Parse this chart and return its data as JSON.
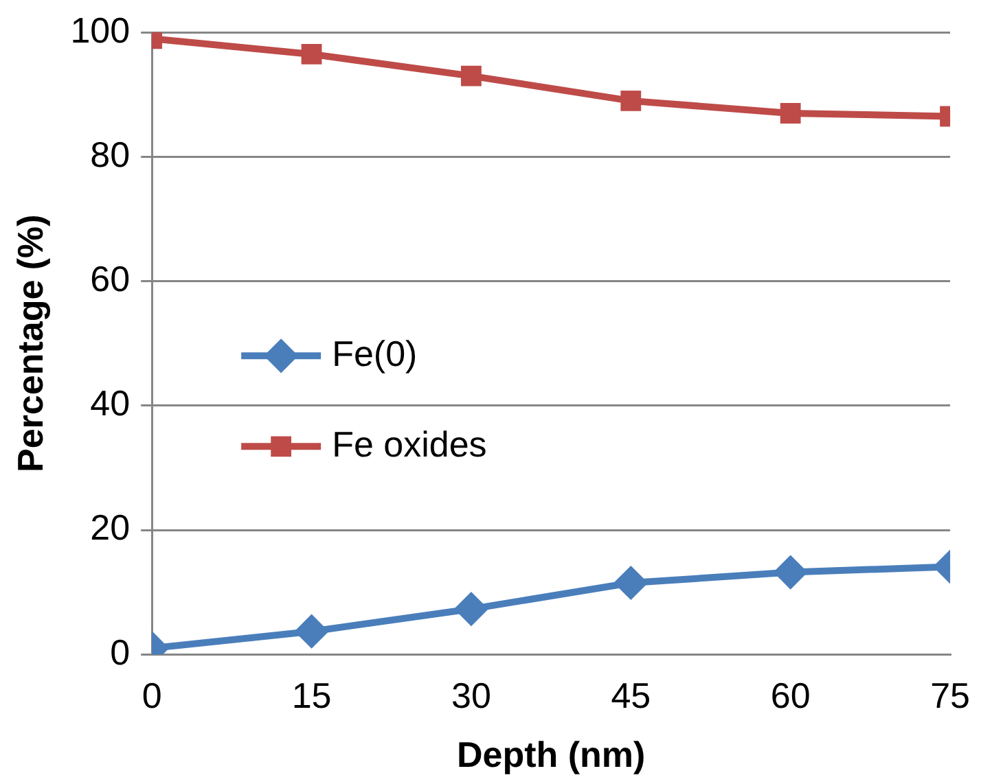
{
  "chart_data": {
    "type": "line",
    "xlabel": "Depth (nm)",
    "ylabel": "Percentage (%)",
    "x": [
      0,
      15,
      30,
      45,
      60,
      75
    ],
    "series": [
      {
        "name": "Fe(0)",
        "color": "#4a7ebb",
        "marker": "diamond",
        "values": [
          1,
          3.7,
          7.3,
          11.5,
          13.2,
          14.1
        ]
      },
      {
        "name": "Fe oxides",
        "color": "#be4b48",
        "marker": "square",
        "values": [
          99,
          96.5,
          93,
          89,
          87,
          86.5
        ]
      }
    ],
    "xlim": [
      0,
      75
    ],
    "xticks": [
      0,
      15,
      30,
      45,
      60,
      75
    ],
    "ylim": [
      0,
      100
    ],
    "yticks": [
      0,
      20,
      40,
      60,
      80,
      100
    ],
    "grid": "y",
    "legend": "left",
    "line_style": "solid"
  }
}
